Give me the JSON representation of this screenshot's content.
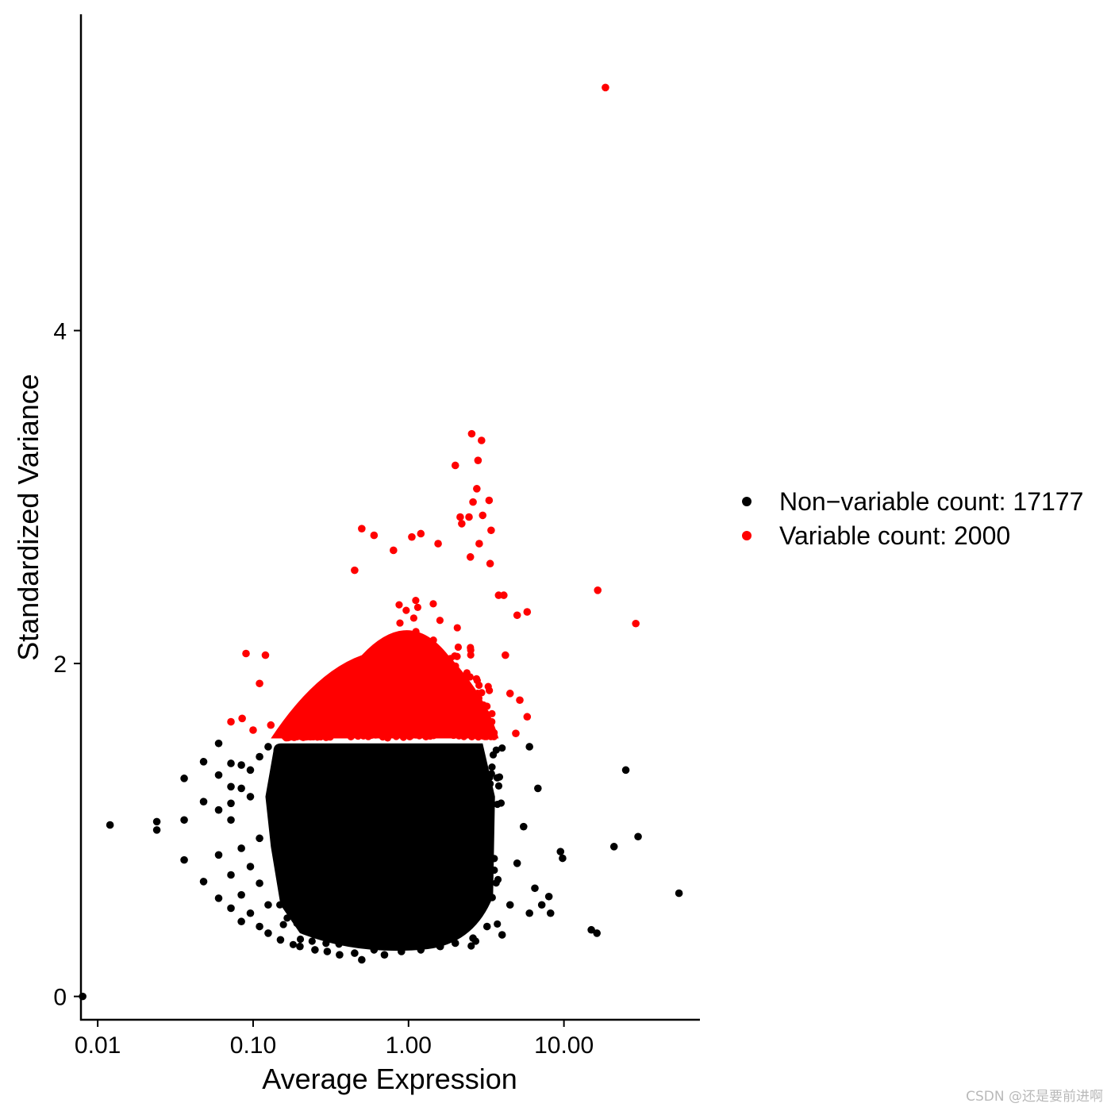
{
  "chart_data": {
    "type": "scatter",
    "xlabel": "Average Expression",
    "ylabel": "Standardized Variance",
    "x_scale": "log10",
    "xlim": [
      0.0078,
      75
    ],
    "ylim": [
      -0.14,
      5.9
    ],
    "x_ticks": [
      {
        "value": 0.01,
        "label": "0.01"
      },
      {
        "value": 0.1,
        "label": "0.10"
      },
      {
        "value": 1,
        "label": "1.00"
      },
      {
        "value": 10,
        "label": "10.00"
      }
    ],
    "y_ticks": [
      {
        "value": 0,
        "label": "0"
      },
      {
        "value": 2,
        "label": "2"
      },
      {
        "value": 4,
        "label": "4"
      }
    ],
    "grid": false,
    "legend_position": "right",
    "series": [
      {
        "name": "Non−variable count: 17177",
        "color": "#000000",
        "points": [
          [
            0.008,
            0.0
          ],
          [
            0.012,
            1.03
          ],
          [
            0.024,
            1.05
          ],
          [
            0.024,
            1.0
          ],
          [
            0.036,
            1.31
          ],
          [
            0.036,
            1.06
          ],
          [
            0.036,
            0.82
          ],
          [
            0.048,
            1.41
          ],
          [
            0.048,
            1.17
          ],
          [
            0.048,
            0.69
          ],
          [
            0.06,
            1.52
          ],
          [
            0.06,
            1.33
          ],
          [
            0.06,
            1.12
          ],
          [
            0.06,
            0.85
          ],
          [
            0.06,
            0.59
          ],
          [
            0.072,
            1.4
          ],
          [
            0.072,
            1.26
          ],
          [
            0.072,
            1.16
          ],
          [
            0.072,
            1.06
          ],
          [
            0.072,
            0.73
          ],
          [
            0.072,
            0.53
          ],
          [
            0.084,
            1.39
          ],
          [
            0.084,
            1.25
          ],
          [
            0.084,
            0.89
          ],
          [
            0.084,
            0.61
          ],
          [
            0.084,
            0.45
          ],
          [
            0.096,
            1.36
          ],
          [
            0.096,
            1.2
          ],
          [
            0.096,
            0.78
          ],
          [
            0.096,
            0.5
          ],
          [
            0.11,
            1.44
          ],
          [
            0.11,
            0.95
          ],
          [
            0.11,
            0.68
          ],
          [
            0.11,
            0.42
          ],
          [
            0.125,
            1.5
          ],
          [
            0.125,
            0.55
          ],
          [
            0.125,
            0.38
          ],
          [
            0.15,
            0.34
          ],
          [
            0.2,
            0.3
          ],
          [
            0.25,
            0.28
          ],
          [
            0.3,
            0.27
          ],
          [
            0.36,
            0.25
          ],
          [
            0.45,
            0.26
          ],
          [
            0.5,
            0.22
          ],
          [
            0.6,
            0.28
          ],
          [
            0.7,
            0.25
          ],
          [
            0.9,
            0.27
          ],
          [
            1.2,
            0.28
          ],
          [
            1.6,
            0.3
          ],
          [
            2.0,
            0.32
          ],
          [
            2.6,
            0.35
          ],
          [
            3.2,
            0.42
          ],
          [
            4.0,
            0.37
          ],
          [
            4.5,
            0.55
          ],
          [
            5.0,
            0.8
          ],
          [
            5.5,
            1.02
          ],
          [
            6.0,
            0.5
          ],
          [
            6.5,
            0.65
          ],
          [
            6.8,
            1.25
          ],
          [
            6.0,
            1.5
          ],
          [
            7.2,
            0.55
          ],
          [
            8.0,
            0.6
          ],
          [
            8.2,
            0.5
          ],
          [
            9.5,
            0.87
          ],
          [
            9.8,
            0.83
          ],
          [
            15.0,
            0.4
          ],
          [
            16.3,
            0.38
          ],
          [
            21.0,
            0.9
          ],
          [
            25.0,
            1.36
          ],
          [
            30.0,
            0.96
          ],
          [
            55.0,
            0.62
          ]
        ]
      },
      {
        "name": "Variable count: 2000",
        "color": "#ff0000",
        "points": [
          [
            18.5,
            5.46
          ],
          [
            2.55,
            3.38
          ],
          [
            2.95,
            3.34
          ],
          [
            2.8,
            3.22
          ],
          [
            2.0,
            3.19
          ],
          [
            2.75,
            3.05
          ],
          [
            3.3,
            2.98
          ],
          [
            2.6,
            2.97
          ],
          [
            2.2,
            2.84
          ],
          [
            2.15,
            2.88
          ],
          [
            2.45,
            2.88
          ],
          [
            3.0,
            2.89
          ],
          [
            0.5,
            2.81
          ],
          [
            0.6,
            2.77
          ],
          [
            3.4,
            2.8
          ],
          [
            1.2,
            2.78
          ],
          [
            1.05,
            2.76
          ],
          [
            1.55,
            2.72
          ],
          [
            2.85,
            2.72
          ],
          [
            3.35,
            2.6
          ],
          [
            2.5,
            2.64
          ],
          [
            0.8,
            2.68
          ],
          [
            0.45,
            2.56
          ],
          [
            16.5,
            2.44
          ],
          [
            4.1,
            2.41
          ],
          [
            3.8,
            2.41
          ],
          [
            5.8,
            2.31
          ],
          [
            5.0,
            2.29
          ],
          [
            29.0,
            2.24
          ],
          [
            0.09,
            2.06
          ],
          [
            0.12,
            2.05
          ],
          [
            0.11,
            1.88
          ],
          [
            0.085,
            1.67
          ],
          [
            0.072,
            1.65
          ],
          [
            0.1,
            1.6
          ],
          [
            0.13,
            1.63
          ],
          [
            4.5,
            1.82
          ],
          [
            5.2,
            1.78
          ],
          [
            5.8,
            1.68
          ],
          [
            4.9,
            1.58
          ],
          [
            4.2,
            2.05
          ]
        ]
      }
    ]
  },
  "watermark": "CSDN @还是要前进啊"
}
